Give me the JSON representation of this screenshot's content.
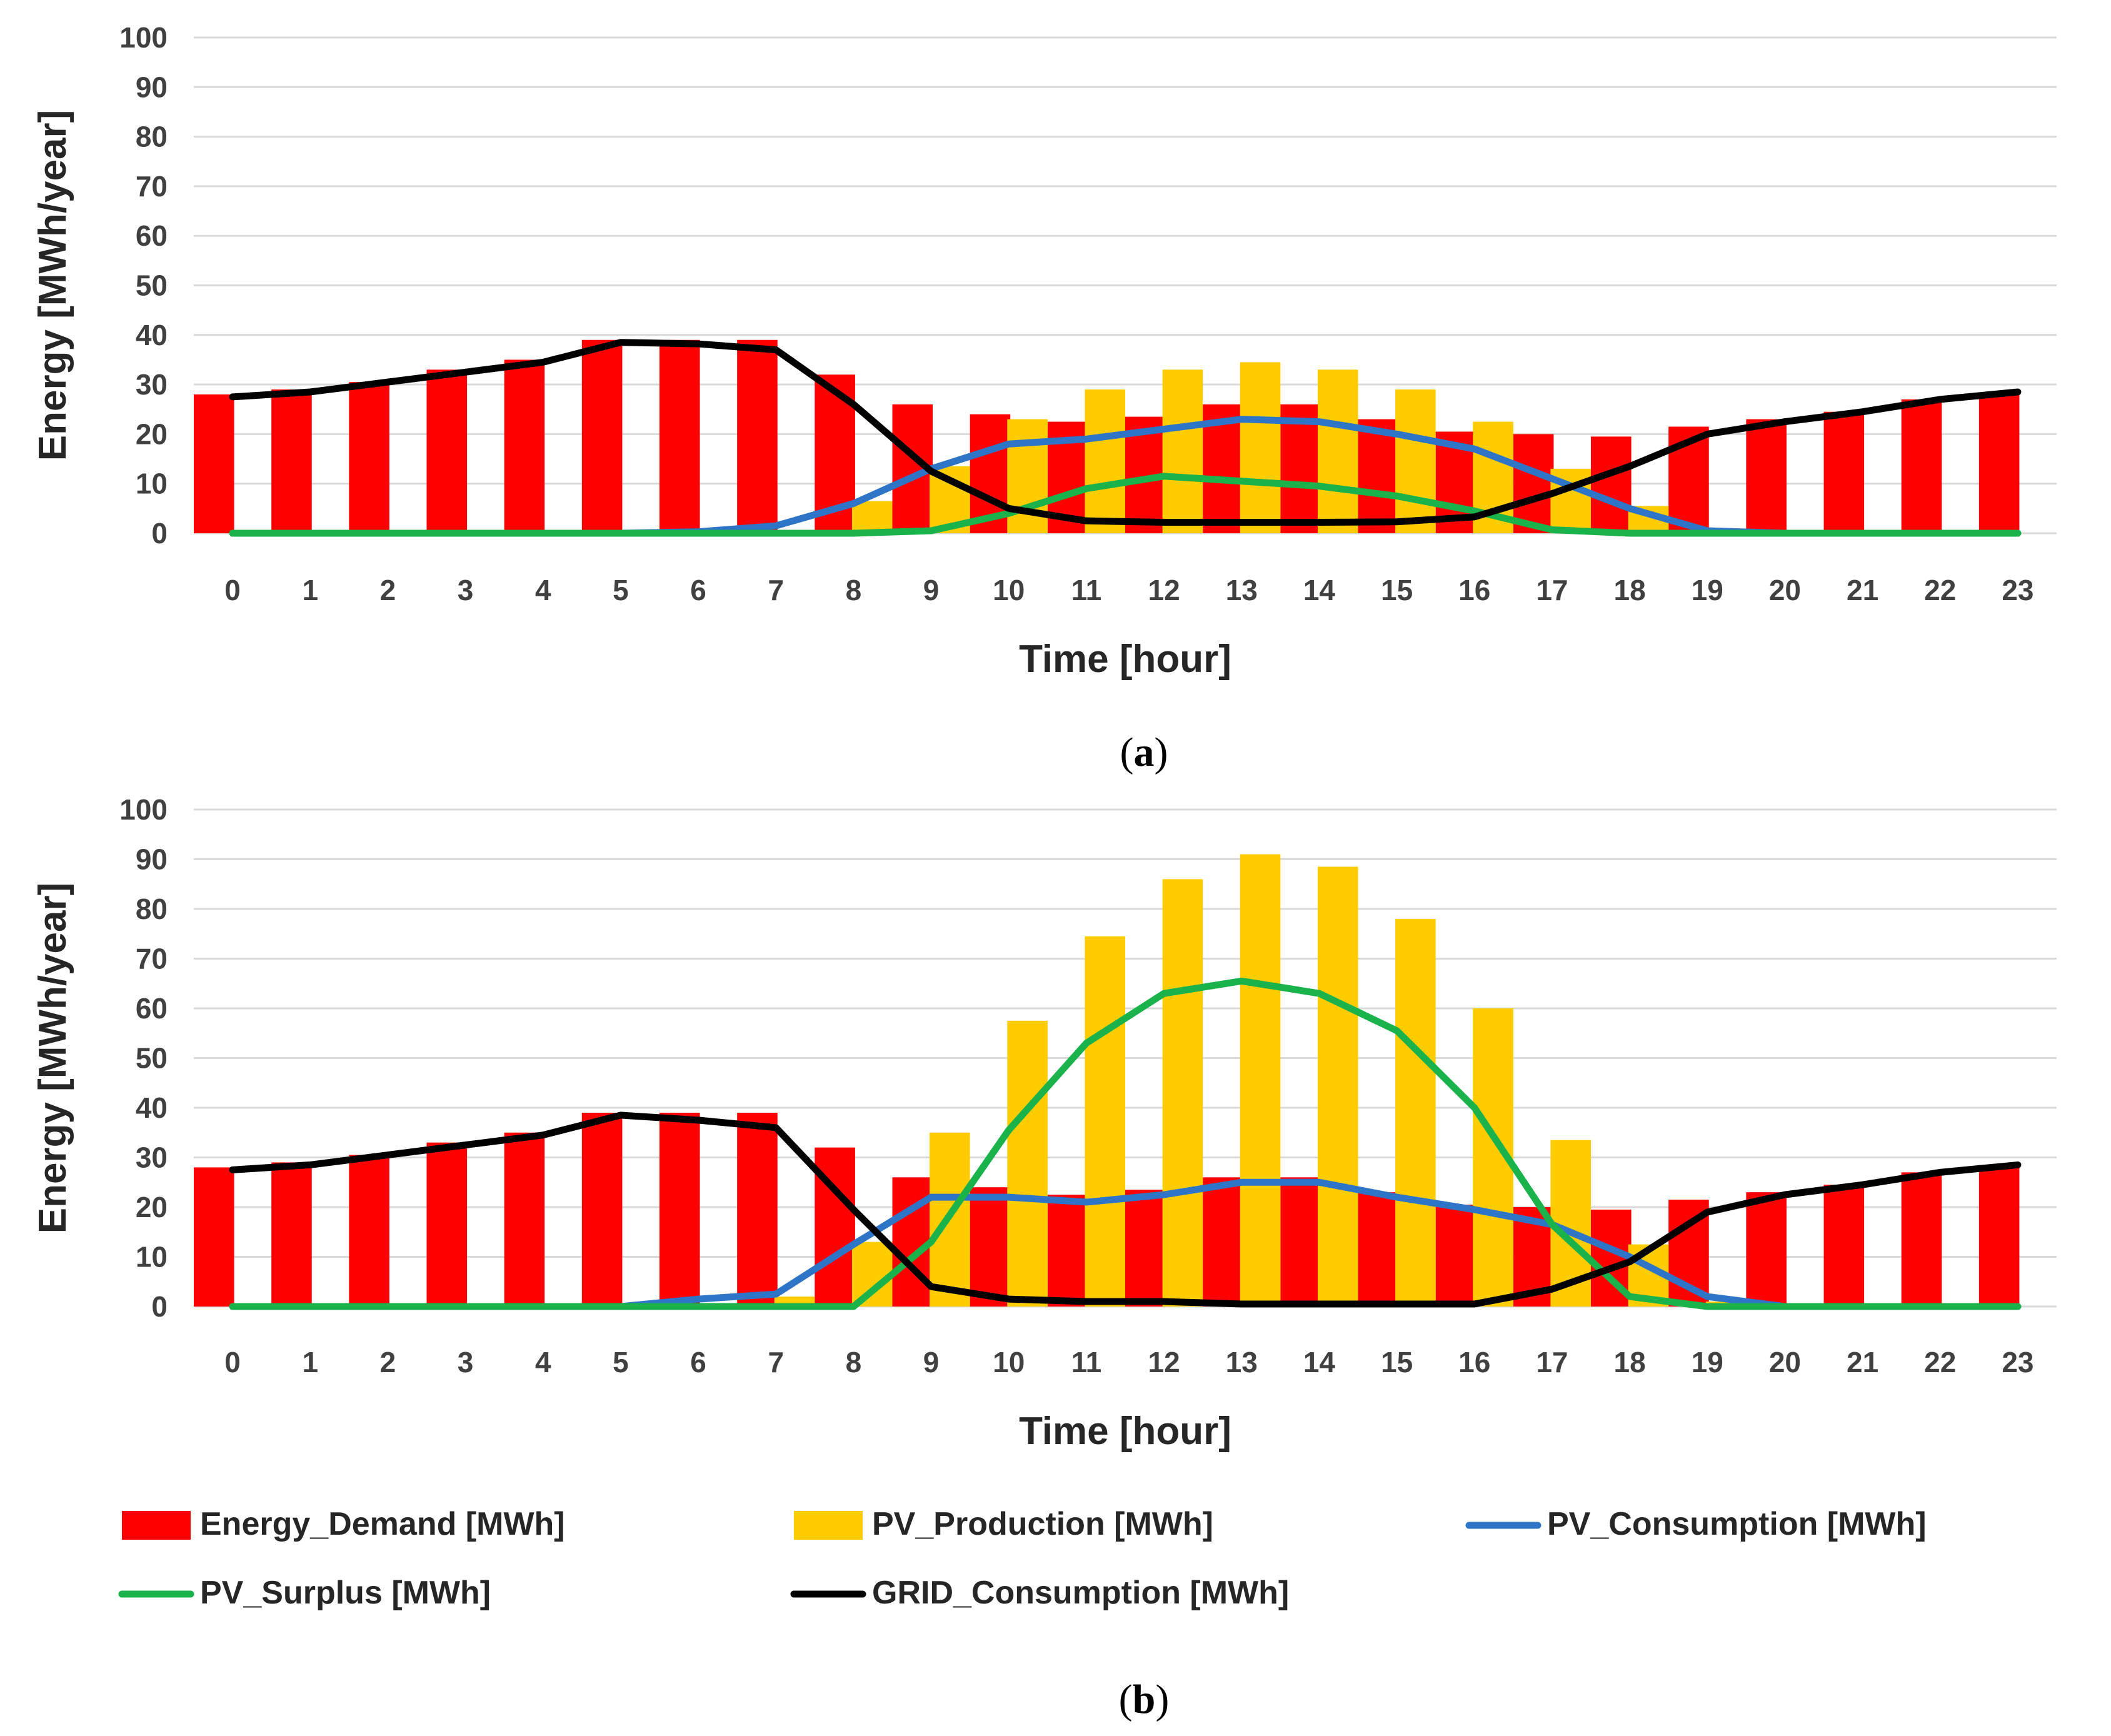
{
  "colors": {
    "demand": "#ff0000",
    "production": "#ffcc00",
    "pv_consumption": "#2f75c7",
    "surplus": "#19b24b",
    "grid": "#000000",
    "gridline": "#d9d9d9"
  },
  "legend": [
    {
      "key": "demand",
      "label": "Energy_Demand [MWh]",
      "kind": "bar"
    },
    {
      "key": "production",
      "label": "PV_Production [MWh]",
      "kind": "bar"
    },
    {
      "key": "pv_consumption",
      "label": "PV_Consumption [MWh]",
      "kind": "line"
    },
    {
      "key": "surplus",
      "label": "PV_Surplus [MWh]",
      "kind": "line"
    },
    {
      "key": "grid",
      "label": "GRID_Consumption [MWh]",
      "kind": "line"
    }
  ],
  "chart_data": [
    {
      "id": "a",
      "type": "bar",
      "caption": {
        "open": "(",
        "letter": "a",
        "close": ")"
      },
      "xlabel": "Time [hour]",
      "ylabel": "Energy [MWh/year]",
      "ylim": [
        0,
        100
      ],
      "yticks": [
        0,
        10,
        20,
        30,
        40,
        50,
        60,
        70,
        80,
        90,
        100
      ],
      "categories": [
        "0",
        "1",
        "2",
        "3",
        "4",
        "5",
        "6",
        "7",
        "8",
        "9",
        "10",
        "11",
        "12",
        "13",
        "14",
        "15",
        "16",
        "17",
        "18",
        "19",
        "20",
        "21",
        "22",
        "23"
      ],
      "series": [
        {
          "name": "Energy_Demand [MWh]",
          "key": "demand",
          "kind": "bar",
          "values": [
            28,
            29,
            30.5,
            33,
            35,
            39,
            39,
            39,
            32,
            26,
            24,
            22.5,
            23.5,
            26,
            26,
            23,
            20.5,
            20,
            19.5,
            21.5,
            23,
            24.5,
            27,
            28
          ]
        },
        {
          "name": "PV_Production [MWh]",
          "key": "production",
          "kind": "bar",
          "values": [
            0,
            0,
            0,
            0,
            0,
            0,
            0,
            0.5,
            6.5,
            13.5,
            23,
            29,
            33,
            34.5,
            33,
            29,
            22.5,
            13,
            5.5,
            0.5,
            0,
            0,
            0,
            0
          ]
        },
        {
          "name": "PV_Consumption [MWh]",
          "key": "pv_consumption",
          "kind": "line",
          "values": [
            0,
            0,
            0,
            0,
            0,
            0,
            0.3,
            1.5,
            6,
            13,
            18,
            19,
            21,
            23,
            22.5,
            20,
            17,
            11,
            5,
            0.5,
            0,
            0,
            0,
            0
          ]
        },
        {
          "name": "PV_Surplus [MWh]",
          "key": "surplus",
          "kind": "line",
          "values": [
            0,
            0,
            0,
            0,
            0,
            0,
            0,
            0,
            0,
            0.5,
            4,
            9,
            11.5,
            10.5,
            9.5,
            7.5,
            4.5,
            0.7,
            0,
            0,
            0,
            0,
            0,
            0
          ]
        },
        {
          "name": "GRID_Consumption [MWh]",
          "key": "grid",
          "kind": "line",
          "values": [
            27.5,
            28.5,
            30.5,
            32.5,
            34.5,
            38.5,
            38.2,
            37,
            26,
            12.5,
            5,
            2.5,
            2.2,
            2.2,
            2.2,
            2.3,
            3.3,
            8,
            13.5,
            20,
            22.5,
            24.5,
            27,
            28.5
          ]
        }
      ]
    },
    {
      "id": "b",
      "type": "bar",
      "caption": {
        "open": "(",
        "letter": "b",
        "close": ")"
      },
      "xlabel": "Time [hour]",
      "ylabel": "Energy [MWh/year]",
      "ylim": [
        0,
        100
      ],
      "yticks": [
        0,
        10,
        20,
        30,
        40,
        50,
        60,
        70,
        80,
        90,
        100
      ],
      "categories": [
        "0",
        "1",
        "2",
        "3",
        "4",
        "5",
        "6",
        "7",
        "8",
        "9",
        "10",
        "11",
        "12",
        "13",
        "14",
        "15",
        "16",
        "17",
        "18",
        "19",
        "20",
        "21",
        "22",
        "23"
      ],
      "series": [
        {
          "name": "Energy_Demand [MWh]",
          "key": "demand",
          "kind": "bar",
          "values": [
            28,
            29,
            30.5,
            33,
            35,
            39,
            39,
            39,
            32,
            26,
            24,
            22.5,
            23.5,
            26,
            26,
            23,
            20.5,
            20,
            19.5,
            21.5,
            23,
            24.5,
            27,
            28
          ]
        },
        {
          "name": "PV_Production [MWh]",
          "key": "production",
          "kind": "bar",
          "values": [
            0,
            0,
            0,
            0,
            0,
            0,
            0.5,
            2,
            13,
            35,
            57.5,
            74.5,
            86,
            91,
            88.5,
            78,
            60,
            33.5,
            12.5,
            1,
            0,
            0,
            0,
            0
          ]
        },
        {
          "name": "PV_Consumption [MWh]",
          "key": "pv_consumption",
          "kind": "line",
          "values": [
            0,
            0,
            0,
            0,
            0,
            0,
            1.5,
            2.5,
            12.5,
            22,
            22,
            21,
            22.5,
            25,
            25,
            22,
            19.5,
            16.5,
            10,
            2,
            0,
            0,
            0,
            0
          ]
        },
        {
          "name": "PV_Surplus [MWh]",
          "key": "surplus",
          "kind": "line",
          "values": [
            0,
            0,
            0,
            0,
            0,
            0,
            0,
            0,
            0,
            13,
            35.5,
            53,
            63,
            65.5,
            63,
            55.5,
            40,
            16.5,
            2,
            0,
            0,
            0,
            0,
            0
          ]
        },
        {
          "name": "GRID_Consumption [MWh]",
          "key": "grid",
          "kind": "line",
          "values": [
            27.5,
            28.5,
            30.5,
            32.5,
            34.5,
            38.5,
            37.5,
            36,
            19.5,
            4,
            1.5,
            1,
            1,
            0.5,
            0.5,
            0.5,
            0.5,
            3.5,
            9,
            19,
            22.5,
            24.5,
            27,
            28.5
          ]
        }
      ]
    }
  ]
}
